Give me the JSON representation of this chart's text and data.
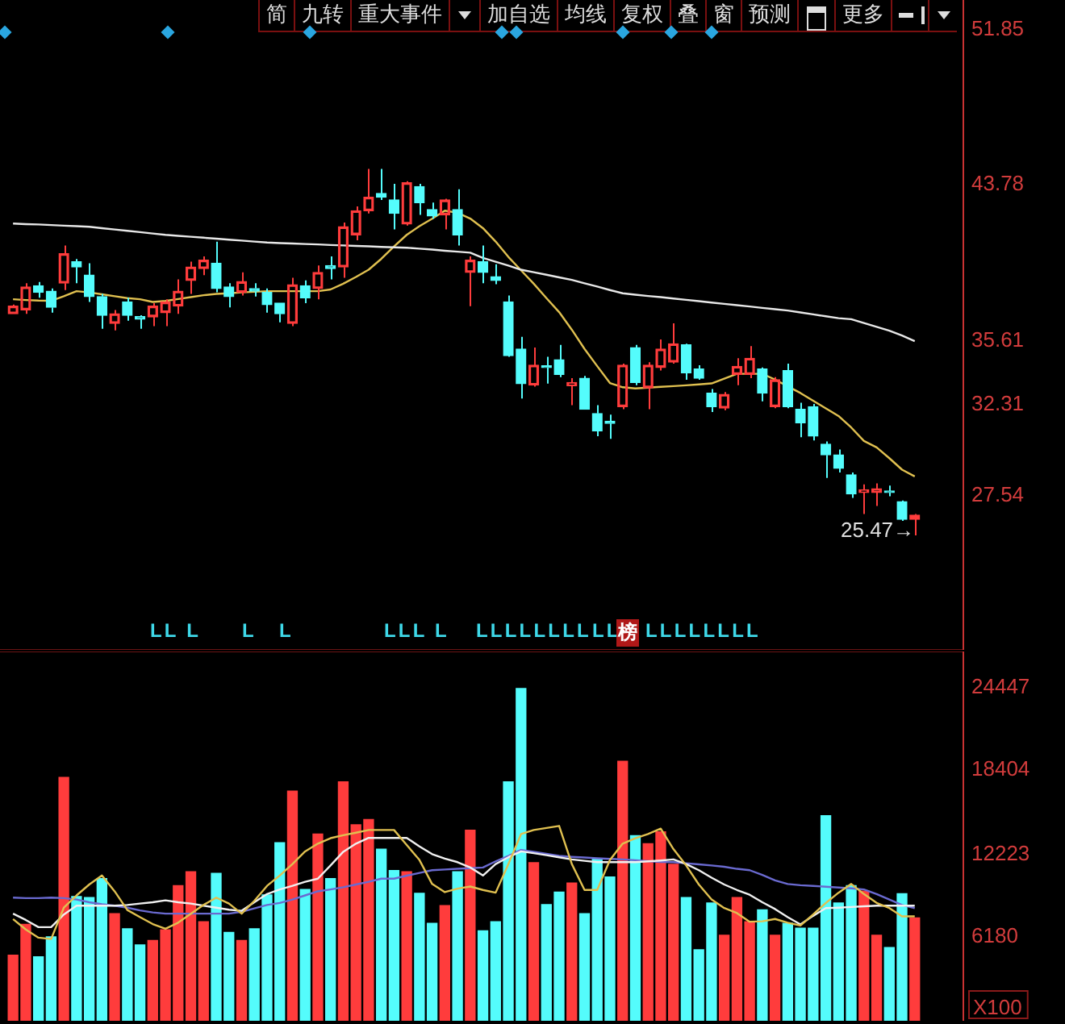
{
  "chart_data": [
    {
      "type": "candlestick",
      "categories": [
        null,
        null,
        null,
        null,
        null,
        null,
        null,
        null,
        null,
        null,
        null,
        null,
        null,
        null,
        null,
        null,
        null,
        null,
        null,
        null,
        null,
        null,
        null,
        null,
        null,
        null,
        null,
        null,
        null,
        null,
        null,
        null,
        null,
        null,
        null,
        null,
        null,
        null,
        null,
        null,
        null,
        null,
        null,
        null,
        null,
        null,
        null,
        null,
        null,
        null,
        null,
        null,
        null,
        null,
        null,
        null,
        null,
        null,
        null,
        null,
        null,
        null,
        null,
        null,
        null,
        null,
        null,
        null,
        null,
        null,
        null,
        null
      ],
      "ohlc": [
        [
          37.03,
          37.51,
          37.03,
          37.43
        ],
        [
          37.23,
          38.63,
          37.03,
          38.43
        ],
        [
          38.49,
          38.69,
          37.87,
          38.15
        ],
        [
          38.21,
          38.35,
          37.09,
          37.37
        ],
        [
          38.63,
          40.59,
          38.27,
          40.17
        ],
        [
          39.75,
          39.89,
          38.63,
          39.47
        ],
        [
          39.05,
          39.67,
          37.65,
          37.93
        ],
        [
          37.93,
          38.07,
          36.25,
          36.95
        ],
        [
          36.53,
          37.23,
          36.17,
          37.03
        ],
        [
          37.65,
          37.87,
          36.67,
          36.95
        ],
        [
          36.89,
          36.95,
          36.25,
          36.75
        ],
        [
          36.87,
          37.59,
          36.39,
          37.43
        ],
        [
          37.09,
          37.79,
          36.39,
          37.65
        ],
        [
          37.43,
          38.83,
          37.03,
          38.21
        ],
        [
          38.77,
          39.75,
          38.07,
          39.47
        ],
        [
          39.39,
          40.03,
          39.05,
          39.83
        ],
        [
          39.67,
          40.79,
          38.15,
          38.35
        ],
        [
          38.43,
          38.63,
          37.37,
          37.93
        ],
        [
          38.15,
          39.19,
          37.99,
          38.71
        ],
        [
          38.35,
          38.63,
          37.93,
          38.21
        ],
        [
          38.15,
          38.35,
          37.09,
          37.51
        ],
        [
          37.59,
          37.59,
          36.59,
          37.03
        ],
        [
          36.53,
          38.91,
          36.39,
          38.55
        ],
        [
          38.49,
          38.77,
          37.59,
          37.87
        ],
        [
          38.35,
          39.55,
          37.79,
          39.19
        ],
        [
          39.55,
          40.03,
          38.83,
          39.39
        ],
        [
          39.47,
          41.79,
          38.91,
          41.57
        ],
        [
          41.15,
          42.63,
          40.87,
          42.41
        ],
        [
          42.41,
          44.59,
          42.27,
          43.11
        ],
        [
          43.31,
          44.59,
          42.97,
          43.11
        ],
        [
          42.97,
          43.81,
          41.43,
          42.27
        ],
        [
          41.71,
          43.95,
          41.63,
          43.87
        ],
        [
          43.67,
          43.81,
          42.19,
          42.83
        ],
        [
          42.47,
          42.83,
          41.99,
          42.13
        ],
        [
          42.19,
          43.03,
          41.43,
          42.97
        ],
        [
          42.47,
          43.53,
          40.59,
          41.15
        ],
        [
          39.19,
          40.03,
          37.43,
          39.83
        ],
        [
          39.75,
          40.59,
          38.63,
          39.19
        ],
        [
          38.97,
          39.61,
          38.57,
          38.77
        ],
        [
          37.65,
          37.99,
          34.79,
          34.85
        ],
        [
          35.19,
          35.83,
          32.61,
          33.39
        ],
        [
          33.31,
          35.27,
          33.23,
          34.35
        ],
        [
          34.29,
          34.79,
          33.39,
          34.23
        ],
        [
          34.63,
          35.41,
          33.73,
          33.87
        ],
        [
          33.28,
          33.67,
          32.27,
          33.45
        ],
        [
          33.67,
          33.79,
          32.05,
          32.05
        ],
        [
          31.83,
          32.27,
          30.65,
          30.93
        ],
        [
          31.43,
          31.77,
          30.51,
          31.32
        ],
        [
          32.19,
          34.43,
          32.05,
          34.35
        ],
        [
          35.27,
          35.41,
          33.31,
          33.45
        ],
        [
          33.17,
          34.51,
          32.05,
          34.35
        ],
        [
          34.23,
          35.69,
          34.07,
          35.19
        ],
        [
          34.51,
          36.53,
          34.43,
          35.47
        ],
        [
          35.41,
          35.47,
          33.59,
          33.95
        ],
        [
          34.15,
          34.35,
          33.59,
          33.67
        ],
        [
          32.89,
          33.11,
          31.91,
          32.19
        ],
        [
          32.11,
          32.95,
          32.0,
          32.83
        ],
        [
          33.87,
          34.71,
          33.31,
          34.29
        ],
        [
          33.87,
          35.35,
          33.67,
          34.71
        ],
        [
          34.15,
          34.23,
          32.47,
          32.89
        ],
        [
          32.19,
          33.73,
          32.11,
          33.59
        ],
        [
          34.07,
          34.43,
          32.11,
          32.19
        ],
        [
          32.05,
          32.39,
          30.59,
          31.35
        ],
        [
          32.19,
          32.33,
          30.43,
          30.65
        ],
        [
          30.23,
          30.37,
          28.47,
          29.67
        ],
        [
          29.67,
          29.95,
          28.75,
          28.97
        ],
        [
          28.63,
          28.75,
          27.43,
          27.63
        ],
        [
          27.71,
          28.13,
          26.59,
          27.85
        ],
        [
          27.71,
          28.19,
          27.01,
          27.91
        ],
        [
          27.79,
          28.07,
          27.51,
          27.71
        ],
        [
          27.23,
          27.29,
          26.23,
          26.31
        ],
        [
          26.31,
          26.59,
          25.47,
          26.53
        ]
      ],
      "colors": [
        "#ff3c3c",
        "#ff3c3c",
        "#54fcfc",
        "#54fcfc",
        "#ff3c3c",
        "#54fcfc",
        "#54fcfc",
        "#54fcfc",
        "#ff3c3c",
        "#54fcfc",
        "#54fcfc",
        "#ff3c3c",
        "#ff3c3c",
        "#ff3c3c",
        "#ff3c3c",
        "#ff3c3c",
        "#54fcfc",
        "#54fcfc",
        "#ff3c3c",
        "#54fcfc",
        "#54fcfc",
        "#54fcfc",
        "#ff3c3c",
        "#54fcfc",
        "#ff3c3c",
        "#54fcfc",
        "#ff3c3c",
        "#ff3c3c",
        "#ff3c3c",
        "#54fcfc",
        "#54fcfc",
        "#ff3c3c",
        "#54fcfc",
        "#54fcfc",
        "#ff3c3c",
        "#54fcfc",
        "#ff3c3c",
        "#54fcfc",
        "#54fcfc",
        "#54fcfc",
        "#54fcfc",
        "#ff3c3c",
        "#54fcfc",
        "#54fcfc",
        "#ff3c3c",
        "#54fcfc",
        "#54fcfc",
        "#54fcfc",
        "#ff3c3c",
        "#54fcfc",
        "#ff3c3c",
        "#ff3c3c",
        "#ff3c3c",
        "#54fcfc",
        "#54fcfc",
        "#54fcfc",
        "#ff3c3c",
        "#ff3c3c",
        "#ff3c3c",
        "#54fcfc",
        "#ff3c3c",
        "#54fcfc",
        "#54fcfc",
        "#54fcfc",
        "#54fcfc",
        "#54fcfc",
        "#54fcfc",
        "#ff3c3c",
        "#ff3c3c",
        "#54fcfc",
        "#54fcfc",
        "#ff3c3c"
      ],
      "series": [
        {
          "type": "line",
          "color": "#e8e8e8",
          "values": [
            41.74,
            41.71,
            41.69,
            41.66,
            41.63,
            41.6,
            41.57,
            41.5,
            41.43,
            41.36,
            41.29,
            41.22,
            41.15,
            41.1,
            41.05,
            41.0,
            40.95,
            40.9,
            40.85,
            40.8,
            40.75,
            40.72,
            40.7,
            40.67,
            40.65,
            40.62,
            40.6,
            40.57,
            40.55,
            40.52,
            40.5,
            40.48,
            40.43,
            40.38,
            40.32,
            40.27,
            40.22,
            39.95,
            39.75,
            39.55,
            39.33,
            39.2,
            39.07,
            38.93,
            38.8,
            38.62,
            38.45,
            38.27,
            38.1,
            38.03,
            37.96,
            37.9,
            37.83,
            37.76,
            37.69,
            37.62,
            37.55,
            37.48,
            37.41,
            37.34,
            37.27,
            37.2,
            37.1,
            37.0,
            36.9,
            36.8,
            36.75,
            36.55,
            36.35,
            36.15,
            35.9,
            35.6
          ]
        },
        {
          "type": "line",
          "color": "#e0c050",
          "values": [
            37.79,
            37.75,
            37.72,
            37.71,
            37.95,
            38.21,
            38.15,
            38.05,
            37.95,
            37.85,
            37.79,
            37.65,
            37.7,
            37.8,
            37.9,
            38.0,
            38.07,
            38.1,
            38.15,
            38.18,
            38.21,
            38.21,
            38.21,
            38.21,
            38.21,
            38.3,
            38.6,
            38.95,
            39.33,
            39.9,
            40.55,
            41.15,
            41.6,
            41.99,
            42.41,
            42.3,
            42.0,
            41.5,
            40.8,
            40.0,
            39.3,
            38.6,
            37.85,
            37.12,
            36.2,
            35.2,
            34.3,
            33.42,
            33.2,
            33.14,
            33.18,
            33.22,
            33.26,
            33.3,
            33.35,
            33.4,
            33.65,
            33.9,
            33.9,
            33.9,
            33.6,
            33.25,
            32.9,
            32.5,
            32.1,
            31.7,
            31.1,
            30.4,
            30.06,
            29.5,
            28.9,
            28.55
          ]
        }
      ],
      "ylim": [
        19.5,
        53.4
      ],
      "yticks": [
        27.54,
        32.31,
        35.61,
        43.78,
        51.85
      ],
      "tick_labels": "y",
      "legend": false,
      "grid": false,
      "marker": "none",
      "annotations": [
        "简",
        "九转",
        "重大事件",
        "加自选",
        "均线",
        "复权",
        "叠",
        "窗",
        "预测",
        "更多",
        "LL L",
        "L",
        "L",
        "LLL L",
        "LLLLLLLL",
        "LL",
        "榜",
        "LLLLLLLL",
        "25.47→"
      ]
    },
    {
      "type": "bar",
      "categories": [
        null,
        null,
        null,
        null,
        null,
        null,
        null,
        null,
        null,
        null,
        null,
        null,
        null,
        null,
        null,
        null,
        null,
        null,
        null,
        null,
        null,
        null,
        null,
        null,
        null,
        null,
        null,
        null,
        null,
        null,
        null,
        null,
        null,
        null,
        null,
        null,
        null,
        null,
        null,
        null,
        null,
        null,
        null,
        null,
        null,
        null,
        null,
        null,
        null,
        null,
        null,
        null,
        null,
        null,
        null,
        null,
        null,
        null,
        null,
        null,
        null,
        null,
        null,
        null,
        null,
        null,
        null,
        null,
        null,
        null,
        null,
        null
      ],
      "values": [
        4820,
        7070,
        4700,
        6160,
        17860,
        9120,
        9040,
        10430,
        7860,
        6750,
        5570,
        5890,
        6670,
        9920,
        10940,
        7270,
        10820,
        6480,
        5890,
        6750,
        9240,
        13070,
        16860,
        9640,
        13710,
        10430,
        17540,
        14380,
        14770,
        12600,
        11020,
        10940,
        9360,
        7150,
        8450,
        10940,
        13980,
        6600,
        7270,
        17540,
        24380,
        11610,
        8530,
        9440,
        10110,
        7860,
        11890,
        10550,
        19040,
        13590,
        13000,
        13860,
        11490,
        9040,
        5210,
        8650,
        6280,
        9040,
        7270,
        8140,
        6280,
        7150,
        6790,
        6790,
        15050,
        8650,
        9920,
        9520,
        6280,
        5370,
        9330,
        7550
      ],
      "colors": [
        "#ff3c3c",
        "#ff3c3c",
        "#54fcfc",
        "#54fcfc",
        "#ff3c3c",
        "#54fcfc",
        "#54fcfc",
        "#54fcfc",
        "#ff3c3c",
        "#54fcfc",
        "#54fcfc",
        "#ff3c3c",
        "#ff3c3c",
        "#ff3c3c",
        "#ff3c3c",
        "#ff3c3c",
        "#54fcfc",
        "#54fcfc",
        "#ff3c3c",
        "#54fcfc",
        "#54fcfc",
        "#54fcfc",
        "#ff3c3c",
        "#54fcfc",
        "#ff3c3c",
        "#54fcfc",
        "#ff3c3c",
        "#ff3c3c",
        "#ff3c3c",
        "#54fcfc",
        "#54fcfc",
        "#ff3c3c",
        "#54fcfc",
        "#54fcfc",
        "#ff3c3c",
        "#54fcfc",
        "#ff3c3c",
        "#54fcfc",
        "#54fcfc",
        "#54fcfc",
        "#54fcfc",
        "#ff3c3c",
        "#54fcfc",
        "#54fcfc",
        "#ff3c3c",
        "#54fcfc",
        "#54fcfc",
        "#54fcfc",
        "#ff3c3c",
        "#54fcfc",
        "#ff3c3c",
        "#ff3c3c",
        "#ff3c3c",
        "#54fcfc",
        "#54fcfc",
        "#54fcfc",
        "#ff3c3c",
        "#ff3c3c",
        "#ff3c3c",
        "#54fcfc",
        "#ff3c3c",
        "#54fcfc",
        "#54fcfc",
        "#54fcfc",
        "#54fcfc",
        "#54fcfc",
        "#54fcfc",
        "#ff3c3c",
        "#ff3c3c",
        "#54fcfc",
        "#54fcfc",
        "#ff3c3c"
      ],
      "series": [
        {
          "type": "line",
          "color": "#e0c050",
          "values": [
            7465,
            6700,
            6100,
            6000,
            8300,
            9200,
            10000,
            10660,
            9500,
            8130,
            7600,
            7100,
            6750,
            7200,
            7860,
            8500,
            9040,
            8600,
            7860,
            8800,
            9900,
            10660,
            11500,
            12430,
            13000,
            13400,
            13620,
            13800,
            14000,
            14000,
            14000,
            12900,
            11800,
            10040,
            9440,
            9700,
            9850,
            9600,
            9400,
            11500,
            13700,
            14000,
            14150,
            14300,
            11500,
            9600,
            9600,
            11800,
            13000,
            13400,
            13700,
            14100,
            12600,
            11400,
            10000,
            8900,
            8270,
            7900,
            7270,
            7300,
            7470,
            7200,
            6990,
            7800,
            8650,
            9400,
            10040,
            9300,
            8650,
            8270,
            7660,
            7660
          ]
        },
        {
          "type": "line",
          "color": "#f0f0f0",
          "values": [
            7860,
            7400,
            6870,
            6870,
            7800,
            8450,
            8450,
            8450,
            8450,
            8500,
            8600,
            8700,
            8840,
            8700,
            8600,
            8450,
            8300,
            8150,
            8070,
            8700,
            9300,
            9640,
            9900,
            10200,
            10430,
            11400,
            12400,
            13000,
            13420,
            13420,
            13420,
            13420,
            12800,
            12230,
            11900,
            11640,
            11250,
            10660,
            11500,
            12000,
            12430,
            12300,
            12150,
            12000,
            11840,
            11740,
            11640,
            11640,
            11640,
            11640,
            11700,
            11760,
            11840,
            11500,
            11050,
            10500,
            10000,
            9600,
            9250,
            8700,
            8200,
            7600,
            7070,
            7700,
            8270,
            8300,
            8350,
            8400,
            8450,
            8450,
            8450,
            8450
          ]
        },
        {
          "type": "line",
          "color": "#6a6ad0",
          "values": [
            9040,
            9000,
            9000,
            9040,
            9000,
            8900,
            8700,
            8550,
            8450,
            8300,
            8100,
            7950,
            7860,
            7860,
            7860,
            7860,
            7860,
            7860,
            8000,
            8250,
            8500,
            8650,
            8900,
            9200,
            9500,
            9640,
            9800,
            10000,
            10200,
            10430,
            10430,
            10650,
            10850,
            11050,
            11100,
            11150,
            11200,
            11250,
            11700,
            12100,
            12540,
            12400,
            12250,
            12100,
            12030,
            11980,
            11920,
            11880,
            11840,
            11780,
            11720,
            11660,
            11640,
            11560,
            11480,
            11400,
            11300,
            11150,
            11050,
            10700,
            10300,
            10040,
            9950,
            9900,
            9840,
            9780,
            9720,
            9640,
            9300,
            8900,
            8500,
            8270
          ]
        }
      ],
      "ylim": [
        0,
        27100
      ],
      "yticks": [
        6180,
        12223,
        18404,
        24447
      ],
      "ylabel": "X100",
      "tick_labels": "y",
      "legend": false,
      "grid": false,
      "marker": "none"
    }
  ]
}
